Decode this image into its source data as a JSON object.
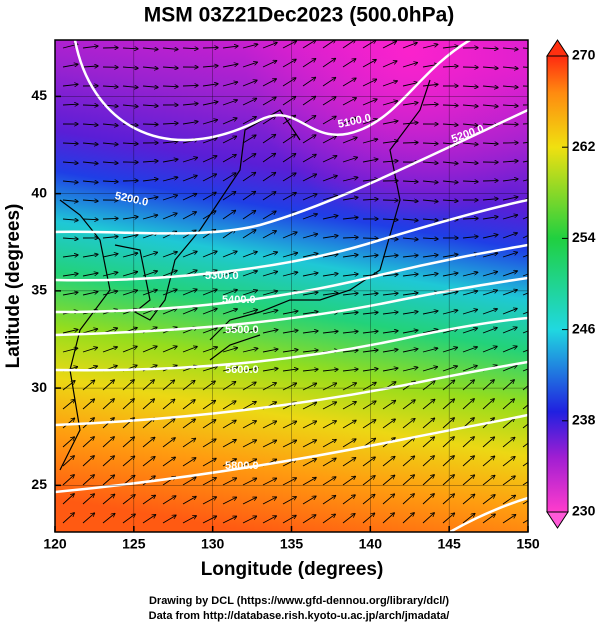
{
  "title": "MSM 03Z21Dec2023 (500.0hPa)",
  "x_label": "Longitude (degrees)",
  "y_label": "Latitude  (degrees)",
  "xlim": [
    120,
    150
  ],
  "ylim": [
    22.6,
    47.9
  ],
  "xticks": [
    120,
    125,
    130,
    135,
    140,
    145,
    150
  ],
  "yticks": [
    25,
    30,
    35,
    40,
    45
  ],
  "colorbar": {
    "lim": [
      230,
      270
    ],
    "ticks": [
      230,
      238,
      246,
      254,
      262,
      270
    ]
  },
  "contour_labels": [
    "5100.0",
    "5200.0",
    "5200.0",
    "5300.0",
    "5400.0",
    "5500.0",
    "5600.0",
    "5800.0"
  ],
  "footer": [
    "Drawing by DCL (https://www.gfd-dennou.org/library/dcl/)",
    "Data from http://database.rish.kyoto-u.ac.jp/arch/jmadata/"
  ]
}
